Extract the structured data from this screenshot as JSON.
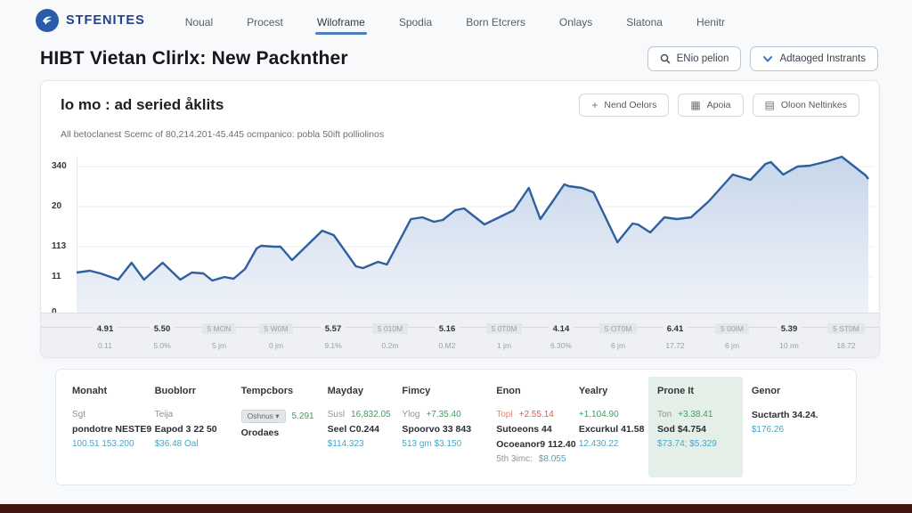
{
  "brand": {
    "name": "STFENITES"
  },
  "nav": {
    "items": [
      {
        "label": "Noual",
        "active": false
      },
      {
        "label": "Procest",
        "active": false
      },
      {
        "label": "Wiloframe",
        "active": true
      },
      {
        "label": "Spodia",
        "active": false
      },
      {
        "label": "Born Etcrers",
        "active": false
      },
      {
        "label": "Onlays",
        "active": false
      },
      {
        "label": "Slatona",
        "active": false
      },
      {
        "label": "Henitr",
        "active": false
      }
    ]
  },
  "header": {
    "title": "HIBT Vietan Clirlx: New Packnther",
    "search_button": "ENio pelion",
    "advanced_button": "Adtaoged Instrants"
  },
  "panel": {
    "title": "lo mo : ad seried åklits",
    "subtitle": "All betoclanest Scemc of 80,214.201-45.445 ocmpanico: pobla 50ift polliolinos",
    "buttons": [
      {
        "icon": "plus",
        "label": "Nend Oelors"
      },
      {
        "icon": "grid",
        "label": "Apoia"
      },
      {
        "icon": "archive",
        "label": "Oloon Neltinkes"
      }
    ]
  },
  "icons": {
    "plus": "+",
    "grid": "▦",
    "archive": "▤"
  },
  "colors": {
    "accent_blue": "#4d7fc0",
    "line": "#2e5f9e",
    "fill_top": "#c2d3e9",
    "fill_bottom": "#e9eef6",
    "link_teal": "#48a5c9",
    "green": "#3da05e",
    "red": "#df5c49",
    "highlight_mint": "#e4efe8",
    "footer_maroon": "#43150f"
  },
  "chart_data": {
    "type": "area",
    "note": "single blue series, values garbled in source; points are [x,y-from-top] in a 900x186 plot space, baseline y=186",
    "y_ticks": [
      {
        "label": "340",
        "y": 22
      },
      {
        "label": "20",
        "y": 67
      },
      {
        "label": "113",
        "y": 112
      },
      {
        "label": "11",
        "y": 146
      },
      {
        "label": "0",
        "y": 186
      }
    ],
    "x_ticks": [
      {
        "main": "4.91",
        "sub": "0.11",
        "bold": true
      },
      {
        "main": "5.50",
        "sub": "5.0%",
        "bold": true
      },
      {
        "main": "5 MON",
        "sub": "5 jm",
        "bold": false
      },
      {
        "main": "5 W0M",
        "sub": "0 jm",
        "bold": false
      },
      {
        "main": "5.57",
        "sub": "9.1%",
        "bold": true
      },
      {
        "main": "5 010M",
        "sub": "0.2m",
        "bold": false
      },
      {
        "main": "5.16",
        "sub": "0.M2",
        "bold": true
      },
      {
        "main": "5 0T0M",
        "sub": "1 jm",
        "bold": false
      },
      {
        "main": "4.14",
        "sub": "6.30%",
        "bold": true
      },
      {
        "main": "5 OT0M",
        "sub": "6 jm",
        "bold": false
      },
      {
        "main": "6.41",
        "sub": "17.72",
        "bold": true
      },
      {
        "main": "5 00IM",
        "sub": "6 jm",
        "bold": false
      },
      {
        "main": "5.39",
        "sub": "10 rm",
        "bold": true
      },
      {
        "main": "5 ST0M",
        "sub": "18.72",
        "bold": false
      }
    ],
    "points": [
      [
        0,
        141
      ],
      [
        15,
        139
      ],
      [
        27,
        142
      ],
      [
        47,
        149
      ],
      [
        62,
        130
      ],
      [
        76,
        149
      ],
      [
        97,
        130
      ],
      [
        117,
        149
      ],
      [
        130,
        141
      ],
      [
        143,
        142
      ],
      [
        153,
        150
      ],
      [
        167,
        146
      ],
      [
        177,
        148
      ],
      [
        190,
        137
      ],
      [
        203,
        114
      ],
      [
        208,
        111
      ],
      [
        223,
        112
      ],
      [
        230,
        112
      ],
      [
        243,
        127
      ],
      [
        277,
        94
      ],
      [
        290,
        99
      ],
      [
        315,
        134
      ],
      [
        323,
        136
      ],
      [
        340,
        129
      ],
      [
        350,
        132
      ],
      [
        377,
        81
      ],
      [
        390,
        79
      ],
      [
        403,
        84
      ],
      [
        413,
        82
      ],
      [
        427,
        71
      ],
      [
        437,
        69
      ],
      [
        460,
        87
      ],
      [
        493,
        71
      ],
      [
        510,
        46
      ],
      [
        523,
        81
      ],
      [
        537,
        61
      ],
      [
        550,
        42
      ],
      [
        555,
        44
      ],
      [
        570,
        46
      ],
      [
        583,
        51
      ],
      [
        610,
        107
      ],
      [
        627,
        86
      ],
      [
        633,
        87
      ],
      [
        647,
        96
      ],
      [
        663,
        79
      ],
      [
        677,
        81
      ],
      [
        693,
        79
      ],
      [
        713,
        61
      ],
      [
        740,
        31
      ],
      [
        760,
        37
      ],
      [
        777,
        19
      ],
      [
        783,
        17
      ],
      [
        797,
        31
      ],
      [
        813,
        22
      ],
      [
        827,
        21
      ],
      [
        847,
        16
      ],
      [
        863,
        11
      ],
      [
        890,
        32
      ],
      [
        893,
        36
      ]
    ]
  },
  "table": {
    "columns": [
      {
        "header": "Monaht",
        "highlight": false,
        "width": 10.5,
        "lines": [
          [
            {
              "t": "Sgt",
              "c": "muted"
            }
          ],
          [
            {
              "t": "pondotre NESTE9",
              "c": "bold"
            }
          ],
          [
            {
              "t": "100.51 153.200",
              "c": "link"
            }
          ]
        ]
      },
      {
        "header": "Buoblorr",
        "highlight": false,
        "width": 11,
        "lines": [
          [
            {
              "t": "Teija",
              "c": "muted"
            }
          ],
          [
            {
              "t": "Eapod 3 22 50",
              "c": "bold"
            }
          ],
          [
            {
              "t": "$36.48 Oal",
              "c": "link"
            }
          ]
        ]
      },
      {
        "header": "Tempcbors",
        "highlight": false,
        "width": 11,
        "lines": [
          [
            {
              "t": "Oshnus ▾",
              "c": "badge"
            },
            {
              "t": "5.291",
              "c": "green"
            }
          ],
          [
            {
              "t": "Orodaes",
              "c": "bold"
            }
          ]
        ]
      },
      {
        "header": "Mayday",
        "highlight": false,
        "width": 9.5,
        "lines": [
          [
            {
              "t": "Susl",
              "c": "muted"
            },
            {
              "t": "16,832.05",
              "c": "green"
            }
          ],
          [
            {
              "t": "Seel C0.244",
              "c": "bold"
            }
          ],
          [
            {
              "t": "$114.323",
              "c": "link"
            }
          ]
        ]
      },
      {
        "header": "Fimcy",
        "highlight": false,
        "width": 12,
        "lines": [
          [
            {
              "t": "Ylog",
              "c": "muted"
            },
            {
              "t": "+7.35.40",
              "c": "green"
            }
          ],
          [
            {
              "t": "Spoorvo 33 843",
              "c": "bold"
            }
          ],
          [
            {
              "t": "513 gm $3.150",
              "c": "link"
            }
          ]
        ]
      },
      {
        "header": "Enon",
        "highlight": false,
        "width": 10.5,
        "lines": [
          [
            {
              "t": "Topl",
              "c": "redmuted"
            },
            {
              "t": "+2.55.14",
              "c": "red"
            }
          ],
          [
            {
              "t": "Sutoeons 44",
              "c": "bold"
            }
          ],
          [
            {
              "t": "Ocoeanor9 112.40",
              "c": "bold"
            }
          ],
          [
            {
              "t": "5th 3imc:",
              "c": "muted"
            },
            {
              "t": "$8.055",
              "c": "link"
            }
          ]
        ]
      },
      {
        "header": "Yealry",
        "highlight": false,
        "width": 10,
        "lines": [
          [
            {
              "t": "+1.104.90",
              "c": "green"
            }
          ],
          [
            {
              "t": "Excurkul 41.58",
              "c": "bold"
            }
          ],
          [
            {
              "t": "12.430.22",
              "c": "link"
            }
          ]
        ]
      },
      {
        "header": "Prone It",
        "highlight": true,
        "width": 12,
        "lines": [
          [
            {
              "t": "Ton",
              "c": "muted"
            },
            {
              "t": "+3.38.41",
              "c": "green"
            }
          ],
          [
            {
              "t": "Sod $4.754",
              "c": "bold"
            }
          ],
          [
            {
              "t": "$73.74; $5.329",
              "c": "link"
            }
          ]
        ]
      },
      {
        "header": "Genor",
        "highlight": false,
        "width": 11,
        "lines": [
          [
            {
              "t": "Suctarth 34.24.",
              "c": "bold"
            }
          ],
          [
            {
              "t": "$176.26",
              "c": "link"
            }
          ]
        ]
      }
    ]
  }
}
